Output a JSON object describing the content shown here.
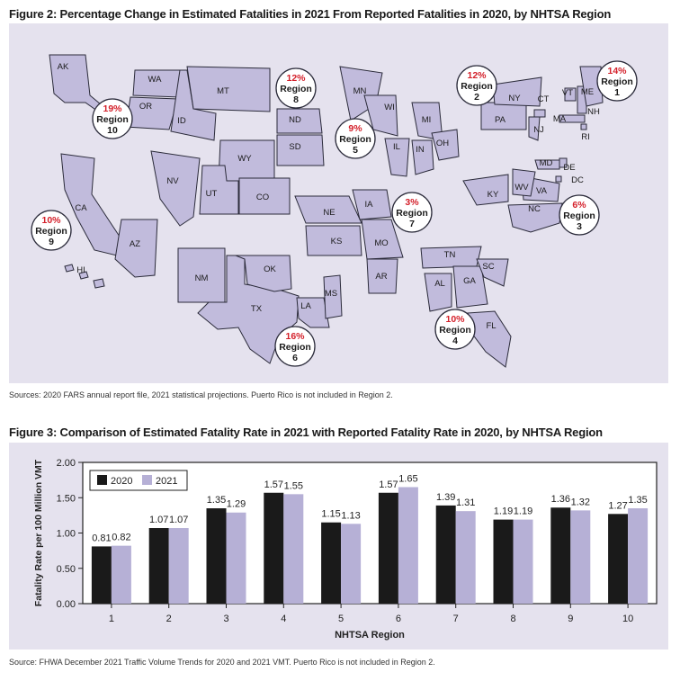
{
  "figure2": {
    "title": "Figure 2: Percentage Change in Estimated Fatalities in 2021 From Reported Fatalities in 2020, by NHTSA Region",
    "source": "Sources: 2020 FARS annual report file, 2021 statistical projections. Puerto Rico is not included in Region 2.",
    "region_word": "Region",
    "regions": [
      {
        "id": "1",
        "pct": "14%"
      },
      {
        "id": "2",
        "pct": "12%"
      },
      {
        "id": "3",
        "pct": "6%"
      },
      {
        "id": "4",
        "pct": "10%"
      },
      {
        "id": "5",
        "pct": "9%"
      },
      {
        "id": "6",
        "pct": "16%"
      },
      {
        "id": "7",
        "pct": "3%"
      },
      {
        "id": "8",
        "pct": "12%"
      },
      {
        "id": "9",
        "pct": "10%"
      },
      {
        "id": "10",
        "pct": "19%"
      }
    ],
    "states": [
      "AK",
      "WA",
      "OR",
      "ID",
      "MT",
      "ND",
      "SD",
      "WY",
      "NV",
      "UT",
      "CO",
      "CA",
      "AZ",
      "NM",
      "HI",
      "TX",
      "OK",
      "KS",
      "NE",
      "IA",
      "MO",
      "AR",
      "LA",
      "MS",
      "MN",
      "WI",
      "IL",
      "IN",
      "MI",
      "OH",
      "TN",
      "AL",
      "GA",
      "FL",
      "SC",
      "NC",
      "KY",
      "VA",
      "WV",
      "MD",
      "DE",
      "DC",
      "PA",
      "NY",
      "NJ",
      "CT",
      "VT",
      "NH",
      "ME",
      "MA",
      "RI"
    ],
    "colors": {
      "state_fill": "#c1bbdc",
      "panel": "#e5e2ee",
      "percent_text": "#d4202a"
    }
  },
  "figure3": {
    "title": "Figure 3: Comparison of Estimated Fatality Rate in 2021 with Reported Fatality Rate in 2020, by NHTSA Region",
    "source": "Source: FHWA December 2021 Traffic Volume Trends for 2020 and 2021 VMT. Puerto Rico is not included in Region 2."
  },
  "chart_data": {
    "type": "bar",
    "categories": [
      "1",
      "2",
      "3",
      "4",
      "5",
      "6",
      "7",
      "8",
      "9",
      "10"
    ],
    "series": [
      {
        "name": "2020",
        "color": "#1a1a1a",
        "values": [
          0.81,
          1.07,
          1.35,
          1.57,
          1.15,
          1.57,
          1.39,
          1.19,
          1.36,
          1.27
        ]
      },
      {
        "name": "2021",
        "color": "#b6b0d6",
        "values": [
          0.82,
          1.07,
          1.29,
          1.55,
          1.13,
          1.65,
          1.31,
          1.19,
          1.32,
          1.35
        ]
      }
    ],
    "xlabel": "NHTSA Region",
    "ylabel": "Fatality Rate per 100 Million VMT",
    "ylim": [
      0,
      2
    ],
    "yticks": [
      "0.00",
      "0.50",
      "1.00",
      "1.50",
      "2.00"
    ],
    "legend": "top-left",
    "grid": false
  }
}
